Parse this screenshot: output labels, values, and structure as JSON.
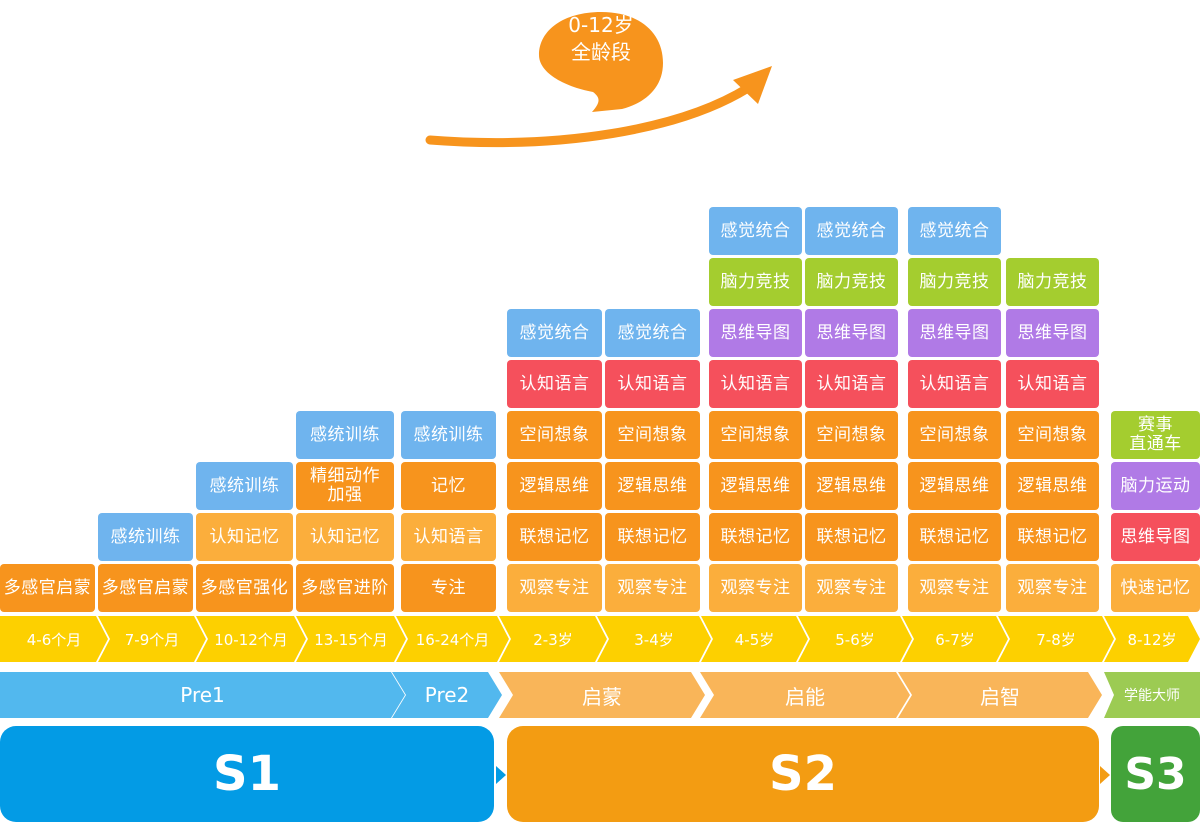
{
  "badge": {
    "line1": "0-12岁",
    "line2": "全龄段"
  },
  "colors": {
    "badge": "#f7941d",
    "arrow": "#f7941d",
    "s1": "#039be5",
    "s2": "#f39c12",
    "s3": "#43a33a"
  },
  "columns": [
    {
      "age": "4-6个月",
      "items": [
        {
          "t": "多感官启蒙",
          "c": "orange"
        }
      ]
    },
    {
      "age": "7-9个月",
      "items": [
        {
          "t": "多感官启蒙",
          "c": "orange"
        },
        {
          "t": "感统训练",
          "c": "blue"
        }
      ]
    },
    {
      "age": "10-12个月",
      "items": [
        {
          "t": "多感官强化",
          "c": "orange"
        },
        {
          "t": "认知记忆",
          "c": "lorange"
        },
        {
          "t": "感统训练",
          "c": "blue"
        }
      ]
    },
    {
      "age": "13-15个月",
      "items": [
        {
          "t": "多感官进阶",
          "c": "orange"
        },
        {
          "t": "认知记忆",
          "c": "lorange"
        },
        {
          "t": "精细动作\n加强",
          "c": "orange"
        },
        {
          "t": "感统训练",
          "c": "blue"
        }
      ]
    },
    {
      "age": "16-24个月",
      "items": [
        {
          "t": "专注",
          "c": "orange"
        },
        {
          "t": "认知语言",
          "c": "lorange"
        },
        {
          "t": "记忆",
          "c": "orange"
        },
        {
          "t": "感统训练",
          "c": "blue"
        }
      ]
    },
    {
      "age": "2-3岁",
      "items": [
        {
          "t": "观察专注",
          "c": "lorange"
        },
        {
          "t": "联想记忆",
          "c": "orange"
        },
        {
          "t": "逻辑思维",
          "c": "orange"
        },
        {
          "t": "空间想象",
          "c": "orange"
        },
        {
          "t": "认知语言",
          "c": "red"
        },
        {
          "t": "感觉统合",
          "c": "blue"
        }
      ]
    },
    {
      "age": "3-4岁",
      "items": [
        {
          "t": "观察专注",
          "c": "lorange"
        },
        {
          "t": "联想记忆",
          "c": "orange"
        },
        {
          "t": "逻辑思维",
          "c": "orange"
        },
        {
          "t": "空间想象",
          "c": "orange"
        },
        {
          "t": "认知语言",
          "c": "red"
        },
        {
          "t": "感觉统合",
          "c": "blue"
        }
      ]
    },
    {
      "age": "4-5岁",
      "items": [
        {
          "t": "观察专注",
          "c": "lorange"
        },
        {
          "t": "联想记忆",
          "c": "orange"
        },
        {
          "t": "逻辑思维",
          "c": "orange"
        },
        {
          "t": "空间想象",
          "c": "orange"
        },
        {
          "t": "认知语言",
          "c": "red"
        },
        {
          "t": "思维导图",
          "c": "purple"
        },
        {
          "t": "脑力竞技",
          "c": "green"
        },
        {
          "t": "感觉统合",
          "c": "blue"
        }
      ]
    },
    {
      "age": "5-6岁",
      "items": [
        {
          "t": "观察专注",
          "c": "lorange"
        },
        {
          "t": "联想记忆",
          "c": "orange"
        },
        {
          "t": "逻辑思维",
          "c": "orange"
        },
        {
          "t": "空间想象",
          "c": "orange"
        },
        {
          "t": "认知语言",
          "c": "red"
        },
        {
          "t": "思维导图",
          "c": "purple"
        },
        {
          "t": "脑力竞技",
          "c": "green"
        },
        {
          "t": "感觉统合",
          "c": "blue"
        }
      ]
    },
    {
      "age": "6-7岁",
      "items": [
        {
          "t": "观察专注",
          "c": "lorange"
        },
        {
          "t": "联想记忆",
          "c": "orange"
        },
        {
          "t": "逻辑思维",
          "c": "orange"
        },
        {
          "t": "空间想象",
          "c": "orange"
        },
        {
          "t": "认知语言",
          "c": "red"
        },
        {
          "t": "思维导图",
          "c": "purple"
        },
        {
          "t": "脑力竞技",
          "c": "green"
        },
        {
          "t": "感觉统合",
          "c": "blue"
        }
      ]
    },
    {
      "age": "7-8岁",
      "items": [
        {
          "t": "观察专注",
          "c": "lorange"
        },
        {
          "t": "联想记忆",
          "c": "orange"
        },
        {
          "t": "逻辑思维",
          "c": "orange"
        },
        {
          "t": "空间想象",
          "c": "orange"
        },
        {
          "t": "认知语言",
          "c": "red"
        },
        {
          "t": "思维导图",
          "c": "purple"
        },
        {
          "t": "脑力竞技",
          "c": "green"
        }
      ]
    },
    {
      "age": "8-12岁",
      "items": [
        {
          "t": "快速记忆",
          "c": "lorange"
        },
        {
          "t": "思维导图",
          "c": "red"
        },
        {
          "t": "脑力运动",
          "c": "purple"
        },
        {
          "t": "赛事\n直通车",
          "c": "green"
        }
      ]
    }
  ],
  "phases": [
    {
      "label": "Pre1",
      "c": "blue"
    },
    {
      "label": "Pre2",
      "c": "blue"
    },
    {
      "label": "启蒙",
      "c": "orange"
    },
    {
      "label": "启能",
      "c": "orange"
    },
    {
      "label": "启智",
      "c": "orange"
    },
    {
      "label": "学能大师",
      "c": "green"
    }
  ],
  "stages": [
    {
      "label": "S1"
    },
    {
      "label": "S2"
    },
    {
      "label": "S3"
    }
  ]
}
